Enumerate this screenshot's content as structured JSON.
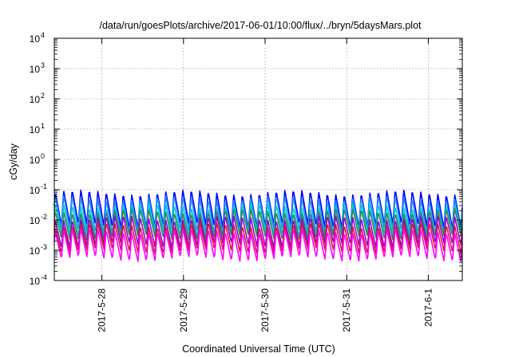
{
  "chart_data": {
    "type": "line",
    "title": "/data/run/goesPlots/archive/2017-06-01/10:00/flux/../bryn/5daysMars.plot",
    "xlabel": "Coordinated Universal Time (UTC)",
    "ylabel": "cGy/day",
    "yscale": "log",
    "ylim": [
      0.0001,
      10000
    ],
    "y_ticks": [
      {
        "base": "10",
        "exp": "-4",
        "value": 0.0001
      },
      {
        "base": "10",
        "exp": "-3",
        "value": 0.001
      },
      {
        "base": "10",
        "exp": "-2",
        "value": 0.01
      },
      {
        "base": "10",
        "exp": "-1",
        "value": 0.1
      },
      {
        "base": "10",
        "exp": "0",
        "value": 1
      },
      {
        "base": "10",
        "exp": "1",
        "value": 10
      },
      {
        "base": "10",
        "exp": "2",
        "value": 100
      },
      {
        "base": "10",
        "exp": "3",
        "value": 1000
      },
      {
        "base": "10",
        "exp": "4",
        "value": 10000
      }
    ],
    "xlim": [
      "2017-05-27 10:00",
      "2017-06-01 10:00"
    ],
    "x_ticks": [
      {
        "label": "2017-5-28",
        "value": "2017-05-28 00:00"
      },
      {
        "label": "2017-5-29",
        "value": "2017-05-29 00:00"
      },
      {
        "label": "2017-5-30",
        "value": "2017-05-30 00:00"
      },
      {
        "label": "2017-5-31",
        "value": "2017-05-31 00:00"
      },
      {
        "label": "2017-6-1",
        "value": "2017-06-01 00:00"
      }
    ],
    "grid": true,
    "legend": "none",
    "oscillation_period_hours": 2.5,
    "series": [
      {
        "color": "#0000ff",
        "peak": 0.085,
        "trough": 0.006
      },
      {
        "color": "#1e90ff",
        "peak": 0.055,
        "trough": 0.004
      },
      {
        "color": "#00ced1",
        "peak": 0.03,
        "trough": 0.003
      },
      {
        "color": "#2e8b57",
        "peak": 0.02,
        "trough": 0.0025
      },
      {
        "color": "#9400d3",
        "peak": 0.012,
        "trough": 0.0014
      },
      {
        "color": "#dc143c",
        "peak": 0.007,
        "trough": 0.0009
      },
      {
        "color": "#ff00ff",
        "peak": 0.0045,
        "trough": 0.0005
      }
    ],
    "colors": {
      "grid": "#a0a0a0",
      "frame": "#000000"
    }
  }
}
